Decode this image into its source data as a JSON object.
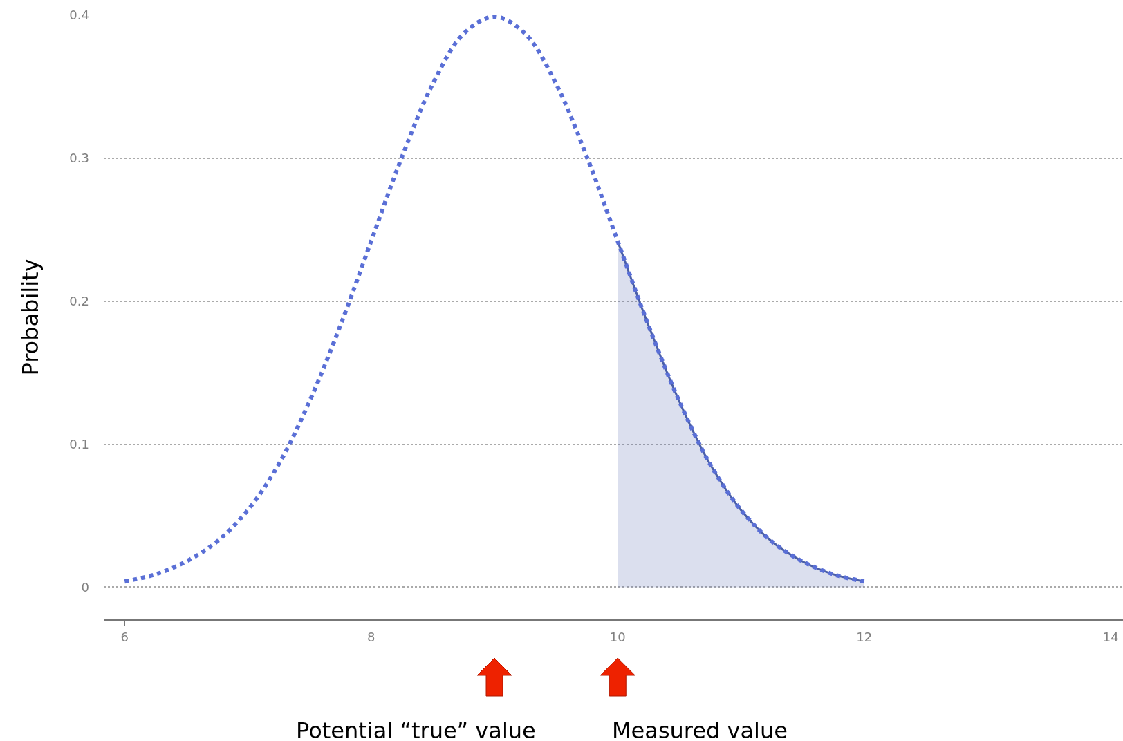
{
  "chart_data": {
    "type": "line",
    "ylabel": "Probability",
    "xlim": [
      5.83,
      14.1
    ],
    "ylim": [
      -0.0225,
      0.4
    ],
    "xticks": [
      6,
      8,
      10,
      12,
      14
    ],
    "yticks": [
      0,
      0.1,
      0.2,
      0.3,
      0.4
    ],
    "grid": "y",
    "marker": "none",
    "series": [
      {
        "line_style": "dotted",
        "color": "#5a6fd6",
        "x": [
          6,
          6.25,
          6.5,
          6.75,
          7,
          7.25,
          7.5,
          7.75,
          8,
          8.25,
          8.5,
          8.75,
          9,
          9.25,
          9.5,
          9.75,
          10,
          10.25,
          10.5,
          10.75,
          11,
          11.25,
          11.5,
          11.75,
          12
        ],
        "values": [
          0.004,
          0.009,
          0.018,
          0.032,
          0.054,
          0.086,
          0.13,
          0.183,
          0.242,
          0.301,
          0.352,
          0.387,
          0.399,
          0.387,
          0.352,
          0.301,
          0.242,
          0.183,
          0.13,
          0.086,
          0.054,
          0.032,
          0.018,
          0.009,
          0.004
        ]
      },
      {
        "type": "area",
        "line_style": "solid",
        "color": "#4a5fa8",
        "x": [
          10,
          10.25,
          10.5,
          10.75,
          11,
          11.25,
          11.5,
          11.75,
          12
        ],
        "values": [
          0.242,
          0.183,
          0.13,
          0.086,
          0.054,
          0.032,
          0.018,
          0.009,
          0.004
        ]
      }
    ],
    "annotations": [
      "Potential “true” value",
      "Measured value"
    ]
  }
}
